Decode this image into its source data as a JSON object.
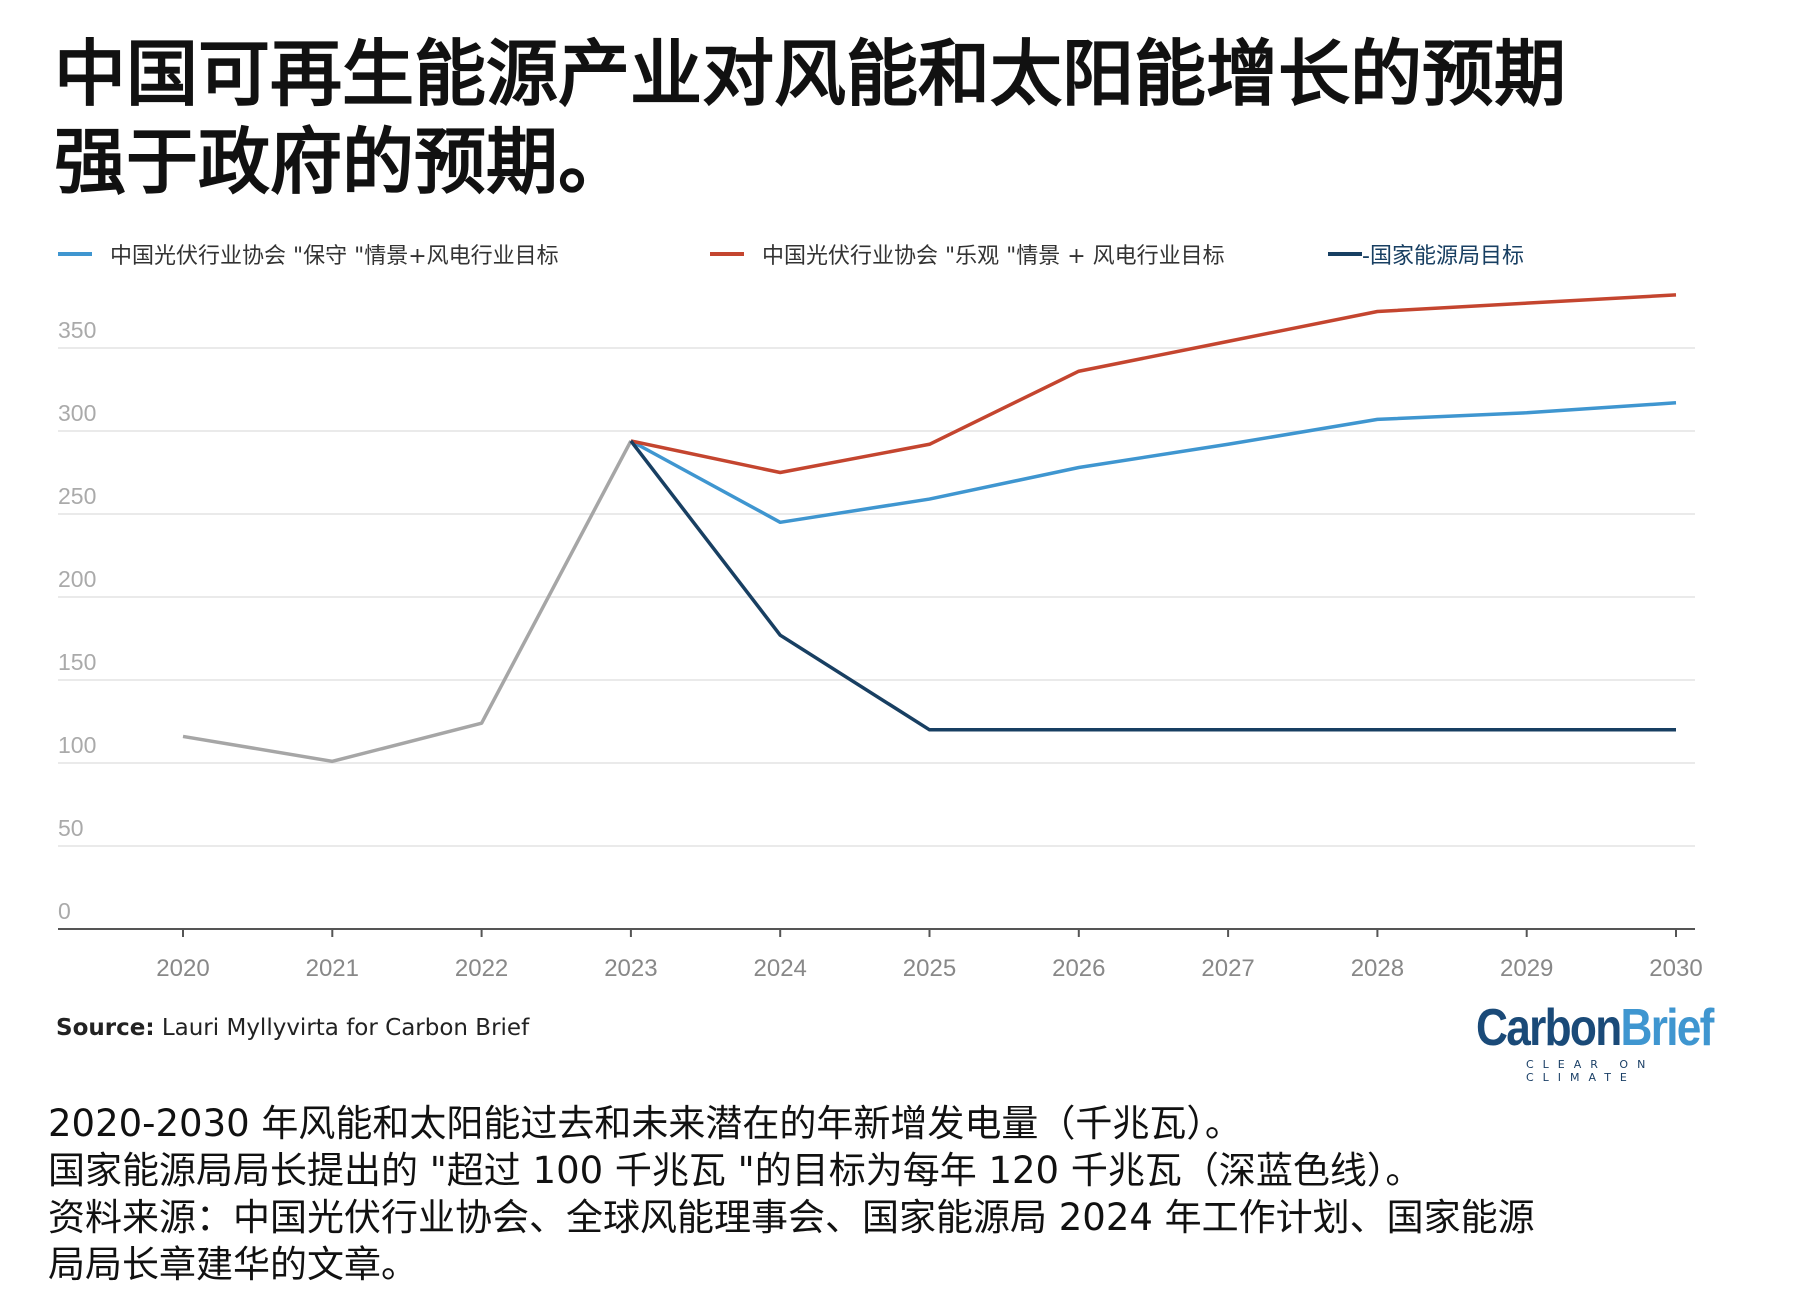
{
  "title": [
    "中国可再生能源产业对风能和太阳能增长的预期",
    "强于政府的预期。"
  ],
  "source_label": "Source:",
  "source_text": " Lauri Myllyvirta for Carbon Brief",
  "logo": {
    "carbon": "Carbon",
    "brief": "Brief",
    "tagline": "CLEAR ON CLIMATE"
  },
  "caption": [
    "2020-2030 年风能和太阳能过去和未来潜在的年新增发电量（千兆瓦）。",
    "国家能源局局长提出的 \"超过 100 千兆瓦 \"的目标为每年 120 千兆瓦（深蓝色线）。",
    "资料来源：中国光伏行业协会、全球风能理事会、国家能源局 2024 年工作计划、国家能源",
    "局局长章建华的文章。"
  ],
  "chart_data": {
    "type": "line",
    "x": [
      2020,
      2021,
      2022,
      2023,
      2024,
      2025,
      2026,
      2027,
      2028,
      2029,
      2030
    ],
    "xticks": [
      "2020",
      "2021",
      "2022",
      "2023",
      "2024",
      "2025",
      "2026",
      "2027",
      "2028",
      "2029",
      "2030"
    ],
    "yticks": [
      "0",
      "50",
      "100",
      "150",
      "200",
      "250",
      "300",
      "350"
    ],
    "ylim": [
      0,
      385
    ],
    "series": [
      {
        "name": "historical",
        "label": "",
        "color": "#a6a6a6",
        "x": [
          2020,
          2021,
          2022,
          2023
        ],
        "values": [
          116,
          101,
          124,
          294
        ]
      },
      {
        "name": "conservative",
        "label": "中国光伏行业协会 \"保守 \"情景+风电行业目标",
        "color": "#3f96d0",
        "x": [
          2023,
          2024,
          2025,
          2026,
          2027,
          2028,
          2029,
          2030
        ],
        "values": [
          294,
          245,
          259,
          278,
          292,
          307,
          311,
          317
        ]
      },
      {
        "name": "optimistic",
        "label": "中国光伏行业协会 \"乐观 \"情景 + 风电行业目标",
        "color": "#c4452f",
        "x": [
          2023,
          2024,
          2025,
          2026,
          2027,
          2028,
          2029,
          2030
        ],
        "values": [
          294,
          275,
          292,
          336,
          354,
          372,
          377,
          382
        ]
      },
      {
        "name": "nea",
        "label": "-国家能源局目标",
        "color": "#183f62",
        "x": [
          2023,
          2024,
          2025,
          2026,
          2027,
          2028,
          2029,
          2030
        ],
        "values": [
          294,
          177,
          120,
          120,
          120,
          120,
          120,
          120
        ]
      }
    ],
    "grid": true,
    "legend": "top"
  }
}
